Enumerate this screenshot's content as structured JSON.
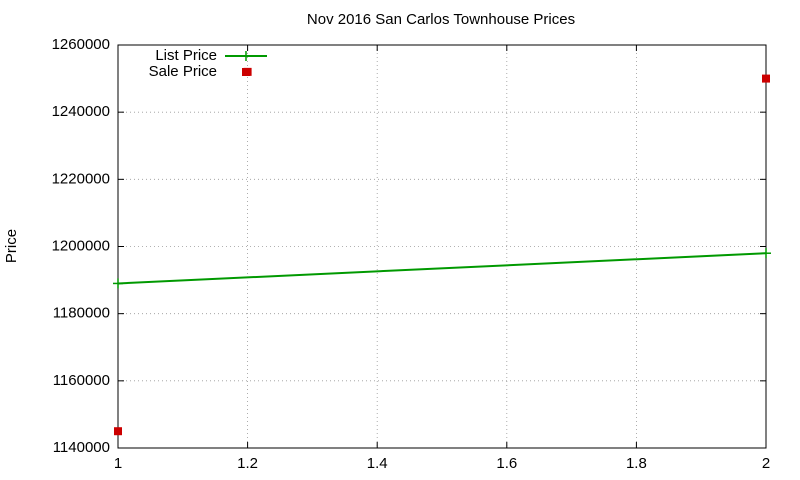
{
  "chart_data": {
    "type": "line",
    "title": "Nov 2016 San Carlos Townhouse Prices",
    "y_label": "Price",
    "xlim": [
      1,
      2
    ],
    "xticks": [
      1,
      1.2,
      1.4,
      1.6,
      1.8,
      2
    ],
    "ylim": [
      1140000,
      1260000
    ],
    "yticks": [
      1140000,
      1160000,
      1180000,
      1200000,
      1220000,
      1240000,
      1260000
    ],
    "grid": true,
    "legend": "top-left",
    "series": [
      {
        "name": "List Price",
        "color": "#009900",
        "mode": "linespoints",
        "x": [
          1,
          2
        ],
        "values": [
          1189000,
          1198000
        ]
      },
      {
        "name": "Sale Price",
        "color": "#cc0000",
        "mode": "points",
        "x": [
          1,
          1.2,
          2
        ],
        "values": [
          1145000,
          1252000,
          1250000
        ]
      }
    ]
  }
}
